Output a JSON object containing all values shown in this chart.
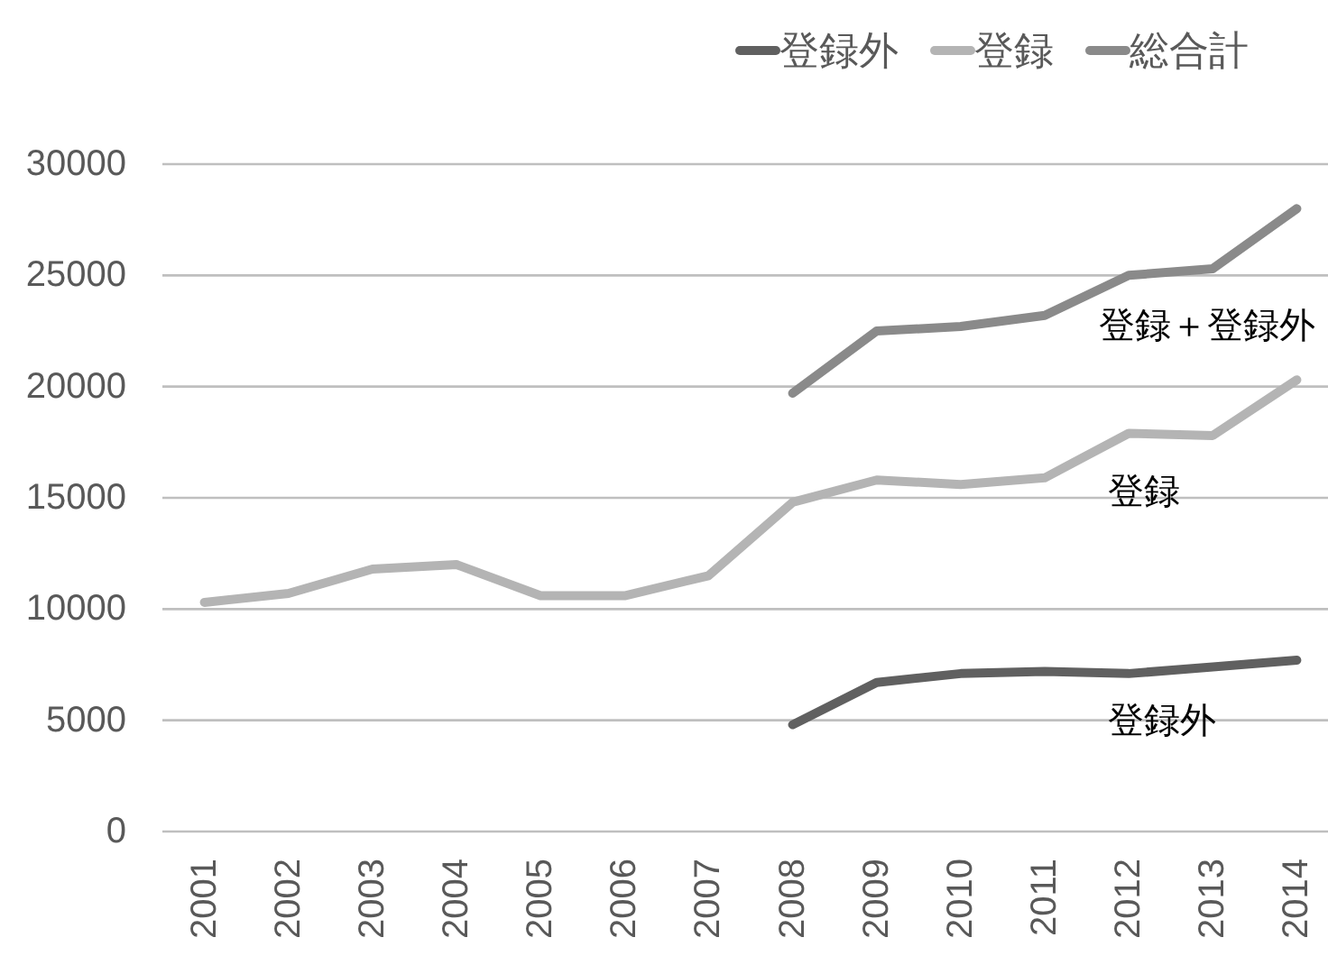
{
  "chart_data": {
    "type": "line",
    "categories": [
      "2001",
      "2002",
      "2003",
      "2004",
      "2005",
      "2006",
      "2007",
      "2008",
      "2009",
      "2010",
      "2011",
      "2012",
      "2013",
      "2014"
    ],
    "series": [
      {
        "name": "登録外",
        "color": "#606060",
        "values": [
          null,
          null,
          null,
          null,
          null,
          null,
          null,
          4800,
          6700,
          7100,
          7200,
          7100,
          7400,
          7700
        ]
      },
      {
        "name": "登録",
        "color": "#b4b4b4",
        "values": [
          10300,
          10700,
          11800,
          12000,
          10600,
          10600,
          11500,
          14800,
          15800,
          15600,
          15900,
          17900,
          17800,
          20300
        ]
      },
      {
        "name": "総合計",
        "color": "#8a8a8a",
        "values": [
          null,
          null,
          null,
          null,
          null,
          null,
          null,
          19700,
          22500,
          22700,
          23200,
          25000,
          25300,
          28000
        ]
      }
    ],
    "ylim": [
      0,
      30000
    ],
    "yticks": [
      0,
      5000,
      10000,
      15000,
      20000,
      25000,
      30000
    ],
    "grid": "y",
    "legend": "top right",
    "annotations": [
      "登録＋登録外",
      "登録",
      "登録外"
    ]
  }
}
